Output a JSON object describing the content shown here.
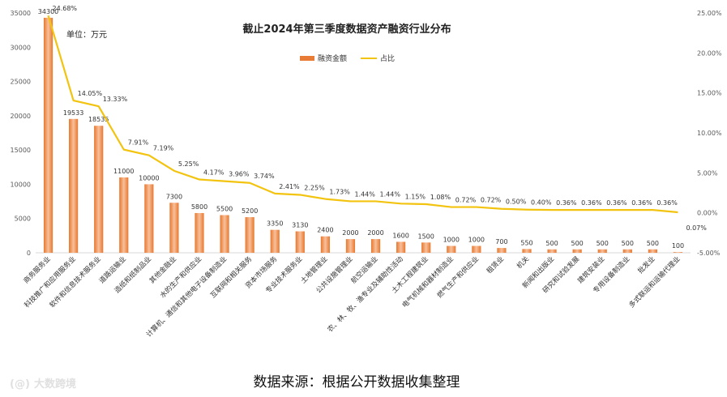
{
  "chart_data": {
    "type": "bar",
    "title": "截止2024年第三季度数据资产融资行业分布",
    "unit_label": "单位：万元",
    "source": "数据来源：根据公开数据收集整理",
    "watermark": "大数跨境",
    "legend": {
      "position": "top-center"
    },
    "ylim_left": [
      0,
      35000
    ],
    "yticks_left": [
      "0",
      "5000",
      "10000",
      "15000",
      "20000",
      "25000",
      "30000",
      "35000"
    ],
    "ylim_right": [
      -5,
      25
    ],
    "yticks_right": [
      "-5.00%",
      "0.00%",
      "5.00%",
      "10.00%",
      "15.00%",
      "20.00%",
      "25.00%"
    ],
    "categories": [
      "商务服务业",
      "科技推广和应用服务业",
      "软件和信息技术服务业",
      "道路运输业",
      "造纸和纸制品业",
      "其他金融业",
      "水的生产和供应业",
      "计算机、通信和其他电子设备制造业",
      "互联网和相关服务",
      "资本市场服务",
      "专业技术服务业",
      "土地管理业",
      "公共设施管理业",
      "航空运输业",
      "农、林、牧、渔专业及辅助性活动",
      "土木工程建筑业",
      "电气机械和器材制造业",
      "燃气生产和供应业",
      "租赁业",
      "机关",
      "新闻和出版业",
      "研究和试验发展",
      "建筑安装业",
      "专用设备制造业",
      "批发业",
      "多式联运和运输代理业"
    ],
    "series": [
      {
        "name": "融资金额",
        "kind": "bar",
        "color": "#e87b35",
        "values": [
          34300,
          19533,
          18535,
          11000,
          10000,
          7300,
          5800,
          5500,
          5200,
          3350,
          3130,
          2400,
          2000,
          2000,
          1600,
          1500,
          1000,
          1000,
          700,
          550,
          500,
          500,
          500,
          500,
          500,
          100
        ]
      },
      {
        "name": "占比",
        "kind": "line",
        "color": "#f2c30f",
        "values": [
          24.68,
          14.05,
          13.33,
          7.91,
          7.19,
          5.25,
          4.17,
          3.96,
          3.74,
          2.41,
          2.25,
          1.73,
          1.44,
          1.44,
          1.15,
          1.08,
          0.72,
          0.72,
          0.5,
          0.4,
          0.36,
          0.36,
          0.36,
          0.36,
          0.36,
          0.07
        ],
        "labels": [
          "24.68%",
          "14.05%",
          "13.33%",
          "7.91%",
          "7.19%",
          "5.25%",
          "4.17%",
          "3.96%",
          "3.74%",
          "2.41%",
          "2.25%",
          "1.73%",
          "1.44%",
          "1.44%",
          "1.15%",
          "1.08%",
          "0.72%",
          "0.72%",
          "0.50%",
          "0.40%",
          "0.36%",
          "0.36%",
          "0.36%",
          "0.36%",
          "0.36%",
          "0.07%"
        ]
      }
    ]
  }
}
